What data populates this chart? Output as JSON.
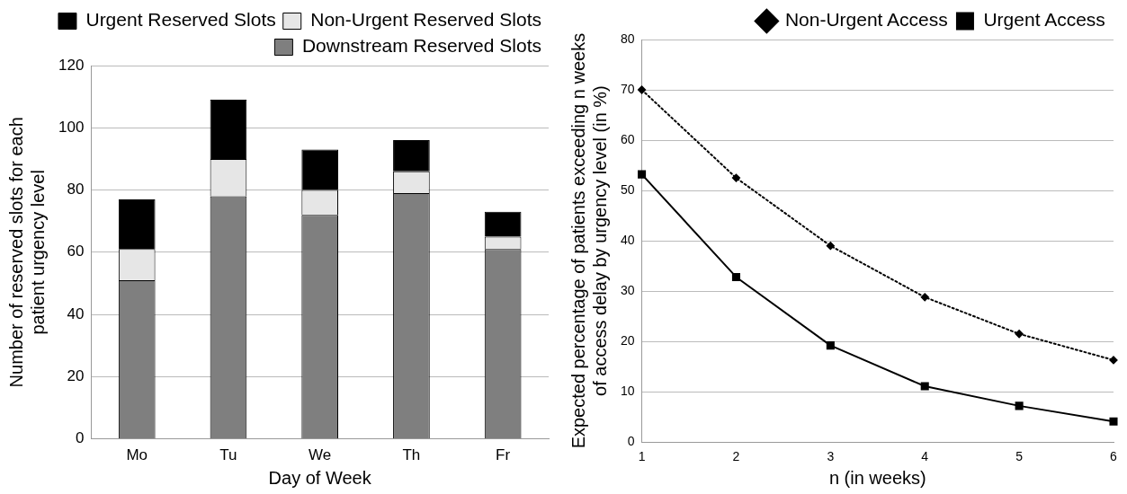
{
  "chart_data": [
    {
      "type": "bar",
      "stacked": true,
      "xlabel": "Day of Week",
      "ylabel": "Number of reserved slots for each patient urgency level",
      "categories": [
        "Mo",
        "Tu",
        "We",
        "Th",
        "Fr"
      ],
      "ylim": [
        0,
        120
      ],
      "yticks": [
        0,
        20,
        40,
        60,
        80,
        100,
        120
      ],
      "grid": "y",
      "legend": "top right",
      "series": [
        {
          "name": "Downstream Reserved Slots",
          "color": "#7f7f7f",
          "values": [
            51,
            78,
            72,
            79,
            61
          ]
        },
        {
          "name": "Non-Urgent Reserved Slots",
          "color": "#e6e6e6",
          "values": [
            10,
            12,
            8,
            7,
            4
          ]
        },
        {
          "name": "Urgent Reserved Slots",
          "color": "#000000",
          "values": [
            16,
            19,
            13,
            10,
            8
          ]
        }
      ]
    },
    {
      "type": "line",
      "xlabel": "n (in weeks)",
      "ylabel": "Expected percentage of patients exceeding n weeks of access delay by urgency level (in %)",
      "categories": [
        "1",
        "2",
        "3",
        "4",
        "5",
        "6"
      ],
      "ylim": [
        0,
        80
      ],
      "yticks": [
        0,
        10,
        20,
        30,
        40,
        50,
        60,
        70,
        80
      ],
      "grid": "y",
      "legend": "top right",
      "series": [
        {
          "name": "Non-Urgent Access",
          "color": "#000000",
          "marker": "diamond",
          "line_style": "dotted",
          "values": [
            70,
            52.5,
            39,
            28.8,
            21.5,
            16.3
          ]
        },
        {
          "name": "Urgent Access",
          "color": "#000000",
          "marker": "square",
          "line_style": "solid",
          "values": [
            53.2,
            32.8,
            19.2,
            11.1,
            7.2,
            4.1
          ]
        }
      ]
    }
  ]
}
